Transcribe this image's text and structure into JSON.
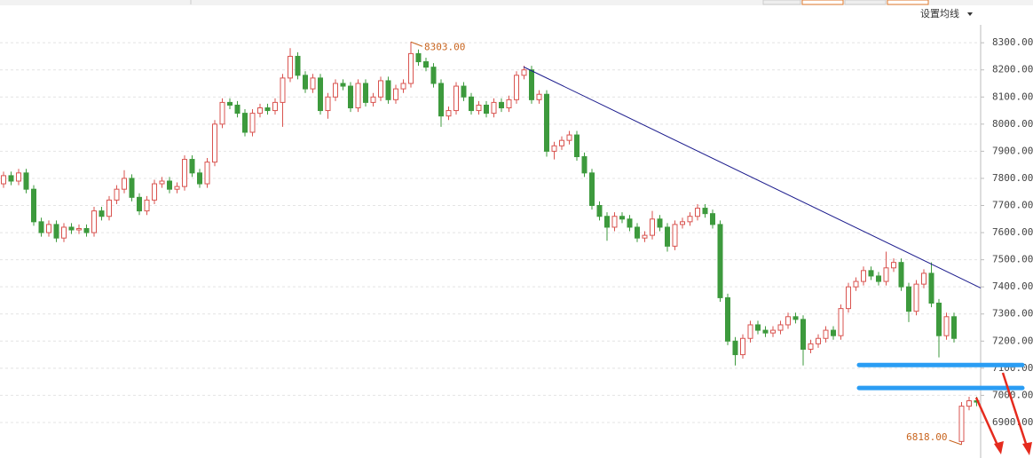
{
  "chart_data": {
    "type": "candlestick",
    "ma_button": "设置均线",
    "up_color": "#d9534f",
    "down_color": "#3d9a3d",
    "ylim": [
      6769,
      8366
    ],
    "yticks": [
      {
        "value": 6900,
        "label": "6900.00"
      },
      {
        "value": 7000,
        "label": "7000.00"
      },
      {
        "value": 7100,
        "label": "7100.00"
      },
      {
        "value": 7200,
        "label": "7200.00"
      },
      {
        "value": 7300,
        "label": "7300.00"
      },
      {
        "value": 7400,
        "label": "7400.00"
      },
      {
        "value": 7500,
        "label": "7500.00"
      },
      {
        "value": 7600,
        "label": "7600.00"
      },
      {
        "value": 7700,
        "label": "7700.00"
      },
      {
        "value": 7800,
        "label": "7800.00"
      },
      {
        "value": 7900,
        "label": "7900.00"
      },
      {
        "value": 8000,
        "label": "8000.00"
      },
      {
        "value": 8100,
        "label": "8100.00"
      },
      {
        "value": 8200,
        "label": "8200.00"
      },
      {
        "value": 8300,
        "label": "8300.00"
      }
    ],
    "grid": true,
    "max_label": {
      "value": 8303,
      "label": "8303.00"
    },
    "min_label": {
      "value": 6818,
      "label": "6818.00"
    },
    "trend_line": [
      8211,
      7396
    ],
    "trend_color": "#1a1a8c",
    "support_lines": [
      7112,
      7027
    ],
    "support_color": "#2a9df4",
    "candles": [
      [
        7780,
        7825,
        7765,
        7810
      ],
      [
        7810,
        7825,
        7775,
        7790
      ],
      [
        7790,
        7835,
        7775,
        7820
      ],
      [
        7820,
        7835,
        7745,
        7760
      ],
      [
        7760,
        7775,
        7625,
        7640
      ],
      [
        7640,
        7655,
        7585,
        7600
      ],
      [
        7600,
        7645,
        7585,
        7630
      ],
      [
        7630,
        7645,
        7565,
        7580
      ],
      [
        7580,
        7635,
        7565,
        7620
      ],
      [
        7620,
        7635,
        7595,
        7610
      ],
      [
        7610,
        7630,
        7595,
        7615
      ],
      [
        7615,
        7630,
        7585,
        7600
      ],
      [
        7600,
        7695,
        7585,
        7680
      ],
      [
        7680,
        7695,
        7645,
        7660
      ],
      [
        7660,
        7735,
        7645,
        7720
      ],
      [
        7720,
        7775,
        7705,
        7760
      ],
      [
        7760,
        7830,
        7745,
        7800
      ],
      [
        7800,
        7815,
        7715,
        7730
      ],
      [
        7730,
        7745,
        7665,
        7680
      ],
      [
        7680,
        7735,
        7665,
        7720
      ],
      [
        7720,
        7795,
        7705,
        7780
      ],
      [
        7780,
        7805,
        7765,
        7790
      ],
      [
        7790,
        7805,
        7745,
        7760
      ],
      [
        7760,
        7785,
        7745,
        7770
      ],
      [
        7770,
        7885,
        7755,
        7870
      ],
      [
        7870,
        7885,
        7805,
        7820
      ],
      [
        7820,
        7835,
        7765,
        7780
      ],
      [
        7780,
        7875,
        7765,
        7860
      ],
      [
        7860,
        8015,
        7845,
        8000
      ],
      [
        8000,
        8095,
        7985,
        8080
      ],
      [
        8080,
        8095,
        8055,
        8070
      ],
      [
        8070,
        8085,
        8025,
        8040
      ],
      [
        8040,
        8055,
        7955,
        7970
      ],
      [
        7970,
        8055,
        7955,
        8040
      ],
      [
        8040,
        8075,
        8025,
        8060
      ],
      [
        8060,
        8075,
        8035,
        8050
      ],
      [
        8050,
        8095,
        8035,
        8080
      ],
      [
        8080,
        8185,
        7990,
        8170
      ],
      [
        8170,
        8280,
        8155,
        8250
      ],
      [
        8250,
        8265,
        8165,
        8180
      ],
      [
        8180,
        8195,
        8115,
        8130
      ],
      [
        8130,
        8185,
        8115,
        8170
      ],
      [
        8170,
        8185,
        8035,
        8050
      ],
      [
        8050,
        8115,
        8020,
        8100
      ],
      [
        8100,
        8165,
        8085,
        8150
      ],
      [
        8150,
        8165,
        8125,
        8140
      ],
      [
        8140,
        8155,
        8045,
        8060
      ],
      [
        8060,
        8165,
        8045,
        8150
      ],
      [
        8150,
        8165,
        8065,
        8080
      ],
      [
        8080,
        8115,
        8065,
        8100
      ],
      [
        8100,
        8175,
        8085,
        8160
      ],
      [
        8160,
        8175,
        8075,
        8090
      ],
      [
        8090,
        8145,
        8075,
        8130
      ],
      [
        8130,
        8165,
        8115,
        8150
      ],
      [
        8150,
        8303,
        8135,
        8260
      ],
      [
        8260,
        8275,
        8215,
        8230
      ],
      [
        8230,
        8245,
        8195,
        8210
      ],
      [
        8210,
        8225,
        8135,
        8150
      ],
      [
        8150,
        8165,
        7990,
        8030
      ],
      [
        8030,
        8065,
        8015,
        8050
      ],
      [
        8050,
        8155,
        8035,
        8140
      ],
      [
        8140,
        8155,
        8085,
        8100
      ],
      [
        8100,
        8115,
        8035,
        8050
      ],
      [
        8050,
        8085,
        8035,
        8070
      ],
      [
        8070,
        8085,
        8025,
        8040
      ],
      [
        8040,
        8095,
        8025,
        8080
      ],
      [
        8080,
        8095,
        8045,
        8060
      ],
      [
        8060,
        8105,
        8045,
        8090
      ],
      [
        8090,
        8195,
        8075,
        8180
      ],
      [
        8180,
        8215,
        8165,
        8200
      ],
      [
        8200,
        8215,
        8075,
        8090
      ],
      [
        8090,
        8125,
        8075,
        8110
      ],
      [
        8110,
        8125,
        7880,
        7900
      ],
      [
        7900,
        7935,
        7870,
        7920
      ],
      [
        7920,
        7955,
        7905,
        7940
      ],
      [
        7940,
        7975,
        7925,
        7960
      ],
      [
        7960,
        7975,
        7865,
        7880
      ],
      [
        7880,
        7895,
        7805,
        7820
      ],
      [
        7820,
        7835,
        7685,
        7700
      ],
      [
        7700,
        7715,
        7645,
        7660
      ],
      [
        7660,
        7675,
        7570,
        7620
      ],
      [
        7620,
        7675,
        7605,
        7660
      ],
      [
        7660,
        7675,
        7635,
        7650
      ],
      [
        7650,
        7665,
        7605,
        7620
      ],
      [
        7620,
        7635,
        7565,
        7580
      ],
      [
        7580,
        7605,
        7565,
        7590
      ],
      [
        7590,
        7680,
        7575,
        7650
      ],
      [
        7650,
        7665,
        7605,
        7620
      ],
      [
        7620,
        7635,
        7530,
        7550
      ],
      [
        7550,
        7645,
        7535,
        7630
      ],
      [
        7630,
        7655,
        7615,
        7640
      ],
      [
        7640,
        7675,
        7625,
        7660
      ],
      [
        7660,
        7705,
        7645,
        7690
      ],
      [
        7690,
        7705,
        7655,
        7670
      ],
      [
        7670,
        7685,
        7615,
        7630
      ],
      [
        7630,
        7645,
        7345,
        7360
      ],
      [
        7360,
        7375,
        7185,
        7200
      ],
      [
        7200,
        7215,
        7110,
        7150
      ],
      [
        7150,
        7225,
        7135,
        7210
      ],
      [
        7210,
        7275,
        7195,
        7260
      ],
      [
        7260,
        7275,
        7225,
        7240
      ],
      [
        7240,
        7255,
        7215,
        7230
      ],
      [
        7230,
        7255,
        7215,
        7240
      ],
      [
        7240,
        7275,
        7225,
        7260
      ],
      [
        7260,
        7305,
        7245,
        7290
      ],
      [
        7290,
        7305,
        7265,
        7280
      ],
      [
        7280,
        7295,
        7110,
        7170
      ],
      [
        7170,
        7205,
        7155,
        7190
      ],
      [
        7190,
        7225,
        7175,
        7210
      ],
      [
        7210,
        7255,
        7195,
        7240
      ],
      [
        7240,
        7255,
        7205,
        7220
      ],
      [
        7220,
        7335,
        7205,
        7320
      ],
      [
        7320,
        7415,
        7305,
        7400
      ],
      [
        7400,
        7435,
        7385,
        7420
      ],
      [
        7420,
        7475,
        7405,
        7460
      ],
      [
        7460,
        7475,
        7425,
        7440
      ],
      [
        7440,
        7455,
        7405,
        7420
      ],
      [
        7420,
        7530,
        7405,
        7470
      ],
      [
        7470,
        7505,
        7455,
        7490
      ],
      [
        7490,
        7505,
        7385,
        7400
      ],
      [
        7400,
        7415,
        7270,
        7310
      ],
      [
        7310,
        7425,
        7295,
        7410
      ],
      [
        7410,
        7465,
        7395,
        7450
      ],
      [
        7450,
        7490,
        7325,
        7340
      ],
      [
        7340,
        7355,
        7140,
        7220
      ],
      [
        7220,
        7305,
        7205,
        7290
      ],
      [
        7290,
        7305,
        7195,
        7210
      ],
      [
        6830,
        6975,
        6818,
        6960
      ],
      [
        6960,
        6995,
        6945,
        6980
      ],
      [
        6980,
        6995,
        6960,
        6975
      ]
    ]
  }
}
